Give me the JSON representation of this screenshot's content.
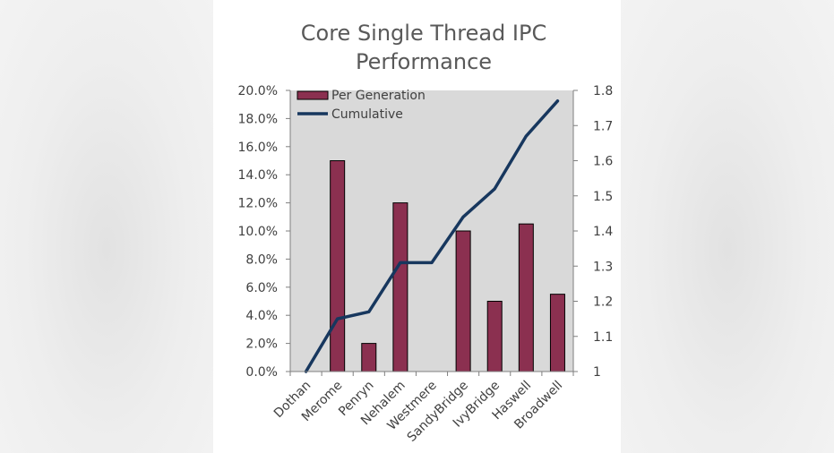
{
  "chart_data": {
    "type": "bar",
    "title_lines": [
      "Core Single Thread IPC",
      "Performance"
    ],
    "categories": [
      "Dothan",
      "Merome",
      "Penryn",
      "Nehalem",
      "Westmere",
      "SandyBridge",
      "IvyBridge",
      "Haswell",
      "Broadwell"
    ],
    "series": [
      {
        "name": "Per Generation",
        "type": "bar",
        "axis": "left",
        "color": "#8b3050",
        "values": [
          0,
          15.0,
          2.0,
          12.0,
          0,
          10.0,
          5.0,
          10.5,
          5.5
        ]
      },
      {
        "name": "Cumulative",
        "type": "line",
        "axis": "right",
        "color": "#17375e",
        "values": [
          1.0,
          1.15,
          1.17,
          1.31,
          1.31,
          1.44,
          1.52,
          1.67,
          1.77
        ]
      }
    ],
    "y_left": {
      "ylim": [
        0,
        20
      ],
      "ticks": [
        0,
        2,
        4,
        6,
        8,
        10,
        12,
        14,
        16,
        18,
        20
      ],
      "tick_labels": [
        "0.0%",
        "2.0%",
        "4.0%",
        "6.0%",
        "8.0%",
        "10.0%",
        "12.0%",
        "14.0%",
        "16.0%",
        "18.0%",
        "20.0%"
      ]
    },
    "y_right": {
      "ylim": [
        1.0,
        1.8
      ],
      "ticks": [
        1.0,
        1.1,
        1.2,
        1.3,
        1.4,
        1.5,
        1.6,
        1.7,
        1.8
      ],
      "tick_labels": [
        "1",
        "1.1",
        "1.2",
        "1.3",
        "1.4",
        "1.5",
        "1.6",
        "1.7",
        "1.8"
      ]
    },
    "legend": {
      "placement": "top-left",
      "entries": [
        "Per Generation",
        "Cumulative"
      ]
    },
    "plot_background": "#d9d9d9",
    "grid": false
  }
}
